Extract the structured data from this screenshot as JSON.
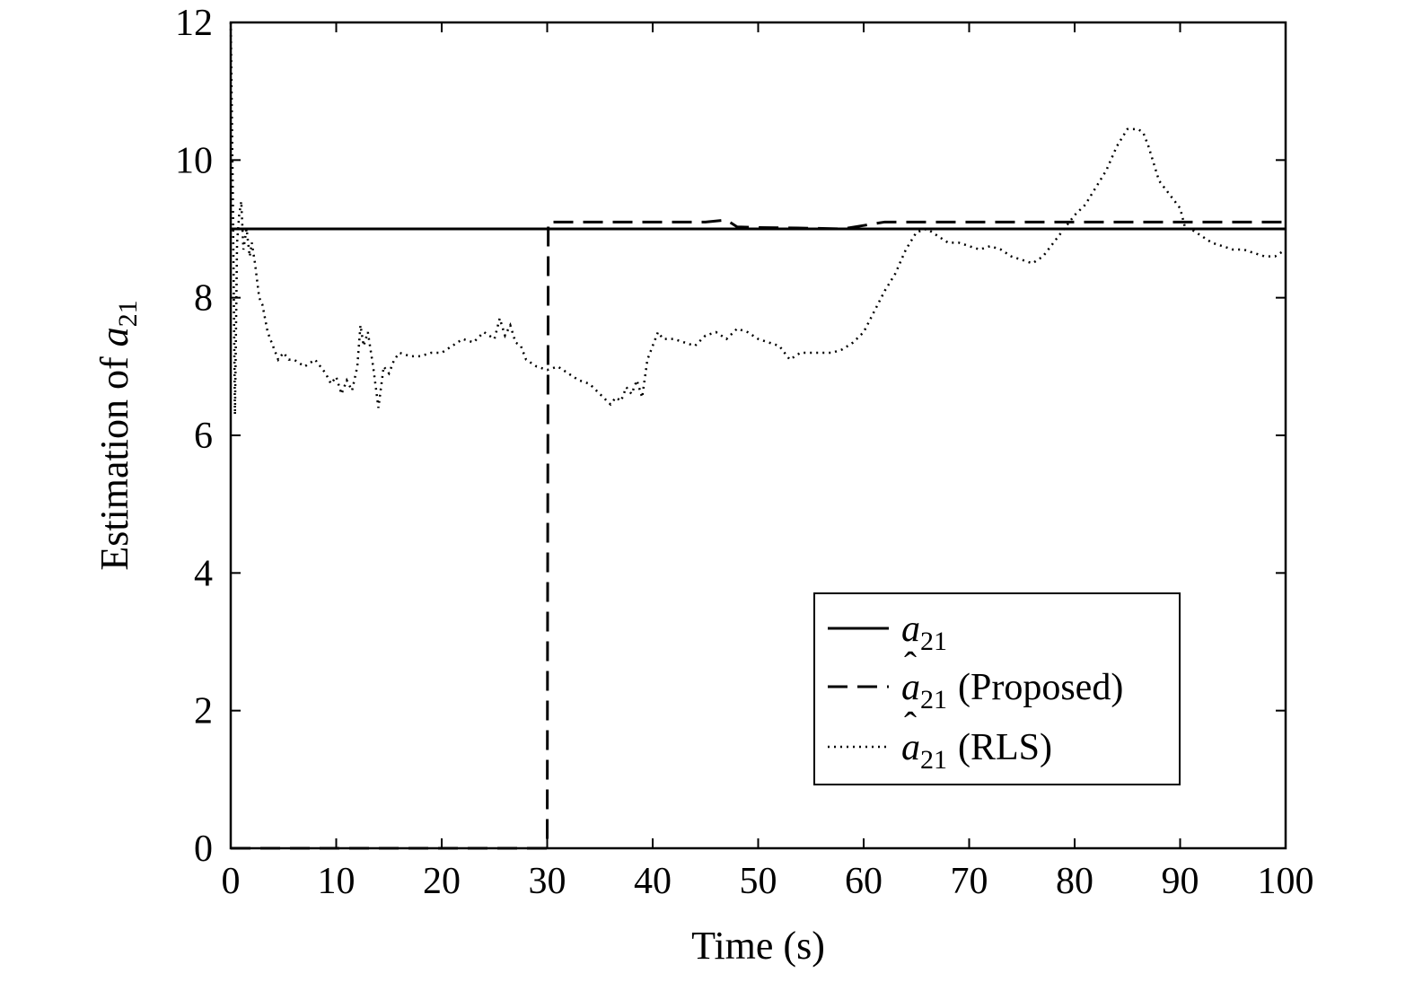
{
  "chart_data": {
    "type": "line",
    "xlabel": "Time (s)",
    "ylabel": {
      "text": "Estimation of ",
      "symbol": "a",
      "subscript": "21"
    },
    "xlim": [
      0,
      100
    ],
    "ylim": [
      0,
      12
    ],
    "xticks": [
      0,
      10,
      20,
      30,
      40,
      50,
      60,
      70,
      80,
      90,
      100
    ],
    "yticks": [
      0,
      2,
      4,
      6,
      8,
      10,
      12
    ],
    "grid": false,
    "legend_position": "bottom-right",
    "series": [
      {
        "symbol": "a",
        "hat": false,
        "subscript": "21",
        "suffix": "",
        "style": "solid",
        "x": [
          0,
          100
        ],
        "y": [
          9,
          9
        ]
      },
      {
        "symbol": "a",
        "hat": true,
        "subscript": "21",
        "suffix": "(Proposed)",
        "style": "dashed",
        "x": [
          0,
          29.9,
          30,
          30.1,
          45,
          47,
          48,
          50,
          55,
          58,
          60,
          62,
          70,
          80,
          90,
          100
        ],
        "y": [
          0,
          0,
          0,
          9.1,
          9.1,
          9.13,
          9.03,
          9.02,
          9.01,
          9.0,
          9.05,
          9.1,
          9.1,
          9.1,
          9.1,
          9.1
        ]
      },
      {
        "symbol": "a",
        "hat": true,
        "subscript": "21",
        "suffix": "(RLS)",
        "style": "dotted",
        "x": [
          0,
          0.2,
          0.4,
          0.6,
          0.8,
          1.0,
          1.2,
          1.5,
          1.8,
          2.0,
          2.3,
          2.7,
          3.0,
          3.5,
          4.0,
          4.5,
          5.0,
          5.5,
          6.0,
          7.0,
          8.0,
          9.0,
          9.5,
          10.0,
          10.5,
          11.0,
          11.5,
          12.0,
          12.3,
          12.6,
          13.0,
          13.5,
          14.0,
          14.5,
          15.0,
          15.5,
          16.0,
          17.0,
          18.0,
          19.0,
          20.0,
          21.0,
          22.0,
          23.0,
          24.0,
          25.0,
          25.5,
          26.0,
          26.5,
          27.0,
          27.5,
          28.0,
          29.0,
          30.0,
          31.0,
          32.0,
          33.0,
          34.0,
          35.0,
          36.0,
          36.5,
          37.0,
          37.5,
          38.0,
          38.5,
          39.0,
          39.5,
          40.0,
          40.5,
          41.0,
          42.0,
          43.0,
          44.0,
          45.0,
          46.0,
          47.0,
          48.0,
          49.0,
          50.0,
          51.0,
          52.0,
          53.0,
          54.0,
          55.0,
          56.0,
          57.0,
          58.0,
          59.0,
          60.0,
          61.0,
          62.0,
          63.0,
          64.0,
          65.0,
          66.0,
          67.0,
          68.0,
          69.0,
          70.0,
          71.0,
          72.0,
          73.0,
          74.0,
          75.0,
          76.0,
          77.0,
          78.0,
          79.0,
          80.0,
          81.0,
          82.0,
          83.0,
          84.0,
          85.0,
          86.0,
          86.5,
          87.0,
          88.0,
          89.0,
          90.0,
          90.5,
          91.0,
          92.0,
          93.0,
          94.0,
          95.0,
          96.0,
          97.0,
          98.0,
          99.0,
          100.0
        ],
        "y": [
          12,
          9.5,
          6.3,
          8.8,
          9.2,
          9.4,
          8.7,
          9.0,
          8.6,
          8.8,
          8.5,
          8.0,
          7.9,
          7.5,
          7.3,
          7.1,
          7.2,
          7.1,
          7.1,
          7.0,
          7.1,
          6.9,
          6.75,
          6.85,
          6.6,
          6.8,
          6.65,
          7.0,
          7.6,
          7.3,
          7.5,
          7.0,
          6.4,
          7.0,
          6.9,
          7.1,
          7.2,
          7.15,
          7.15,
          7.2,
          7.2,
          7.3,
          7.4,
          7.35,
          7.5,
          7.4,
          7.7,
          7.45,
          7.6,
          7.35,
          7.3,
          7.1,
          7.0,
          6.95,
          7.0,
          6.9,
          6.8,
          6.75,
          6.6,
          6.45,
          6.55,
          6.5,
          6.7,
          6.6,
          6.8,
          6.55,
          7.1,
          7.3,
          7.5,
          7.4,
          7.4,
          7.35,
          7.3,
          7.45,
          7.5,
          7.4,
          7.55,
          7.5,
          7.4,
          7.35,
          7.3,
          7.1,
          7.2,
          7.2,
          7.2,
          7.2,
          7.25,
          7.35,
          7.5,
          7.8,
          8.1,
          8.35,
          8.7,
          8.95,
          9.0,
          8.9,
          8.8,
          8.8,
          8.75,
          8.7,
          8.75,
          8.7,
          8.6,
          8.55,
          8.5,
          8.6,
          8.8,
          9.0,
          9.2,
          9.35,
          9.6,
          9.85,
          10.2,
          10.45,
          10.45,
          10.4,
          10.2,
          9.7,
          9.5,
          9.3,
          9.0,
          9.0,
          8.9,
          8.8,
          8.75,
          8.7,
          8.7,
          8.65,
          8.6,
          8.6,
          8.7
        ]
      }
    ]
  }
}
